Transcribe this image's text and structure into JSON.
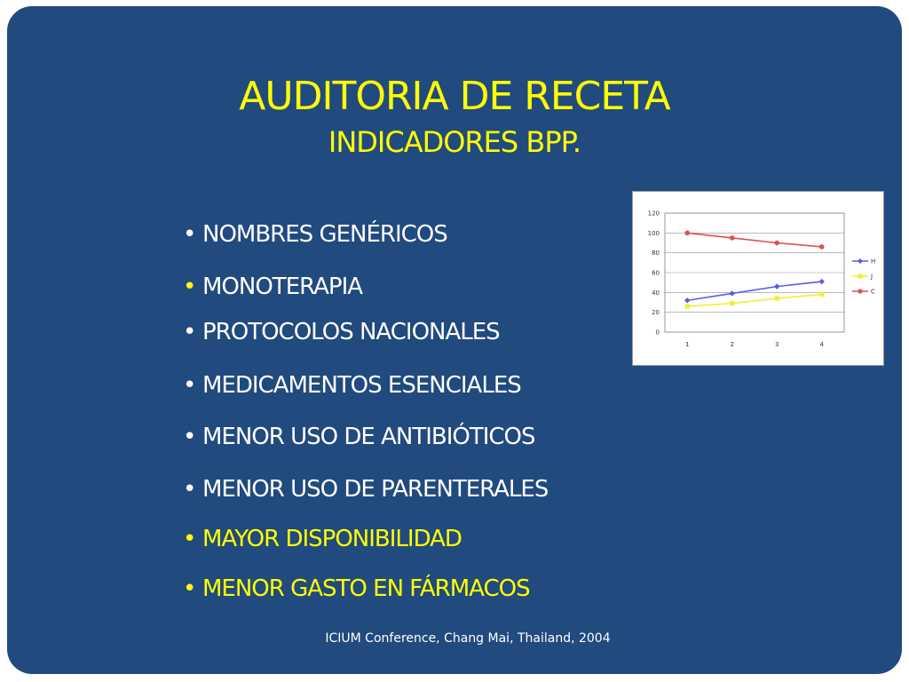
{
  "slide": {
    "title": "AUDITORIA DE RECETA",
    "subtitle": "INDICADORES BPP.",
    "bullet_symbol": "•",
    "bullets": [
      {
        "text": "NOMBRES GENÉRICOS",
        "color": "#ffffff",
        "bullet_color": "#ffffff"
      },
      {
        "text": "MONOTERAPIA",
        "color": "#ffffff",
        "bullet_color": "#ffff00"
      },
      {
        "text": "PROTOCOLOS  NACIONALES",
        "color": "#ffffff",
        "bullet_color": "#ffffff"
      },
      {
        "text": "MEDICAMENTOS ESENCIALES",
        "color": "#ffffff",
        "bullet_color": "#ffffff"
      },
      {
        "text": "MENOR USO DE ANTIBIÓTICOS",
        "color": "#ffffff",
        "bullet_color": "#ffffff"
      },
      {
        "text": "MENOR USO DE PARENTERALES",
        "color": "#ffffff",
        "bullet_color": "#ffffff"
      },
      {
        "text": "MAYOR DISPONIBILIDAD",
        "color": "#ffff00",
        "bullet_color": "#ffff00"
      },
      {
        "text": "MENOR GASTO EN FÁRMACOS",
        "color": "#ffff00",
        "bullet_color": "#ffff00"
      }
    ],
    "footer": "ICIUM Conference, Chang Mai, Thailand, 2004",
    "colors": {
      "background": "#214a7e",
      "title": "#ffff00",
      "text": "#ffffff"
    }
  },
  "chart_data": {
    "type": "line",
    "title": "",
    "xlabel": "",
    "ylabel": "",
    "categories": [
      "1",
      "2",
      "3",
      "4"
    ],
    "ylim": [
      0,
      120
    ],
    "yticks": [
      "0",
      "20",
      "40",
      "60",
      "80",
      "100",
      "120"
    ],
    "grid": true,
    "legend": "right",
    "series": [
      {
        "name": "H",
        "color": "#5a5ae6",
        "values": [
          32,
          39,
          46,
          51
        ]
      },
      {
        "name": "J",
        "color": "#f0f032",
        "values": [
          26,
          29,
          34,
          38
        ]
      },
      {
        "name": "C",
        "color": "#e05050",
        "values": [
          100,
          95,
          90,
          86
        ]
      }
    ]
  }
}
